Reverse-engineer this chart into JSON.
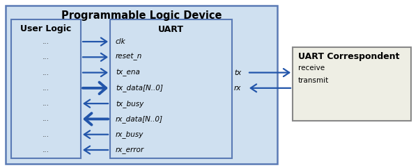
{
  "fig_w": 6.0,
  "fig_h": 2.42,
  "dpi": 100,
  "bg": "#ffffff",
  "pld_fill": "#cfe0f0",
  "pld_edge": "#5a7ab5",
  "ul_fill": "#cfe0f0",
  "ul_edge": "#5a7ab5",
  "uart_fill": "#cfe0f0",
  "uart_edge": "#5a7ab5",
  "corr_fill": "#eeeee4",
  "corr_edge": "#888888",
  "arrow_color": "#2255aa",
  "pld_title": "Programmable Logic Device",
  "ul_title": "User Logic",
  "uart_title": "UART",
  "corr_title": "UART Correspondent",
  "signals_in": [
    "clk",
    "reset_n",
    "tx_ena",
    "tx_data[N..0]"
  ],
  "signals_out": [
    "tx_busy",
    "rx_data[N..0]",
    "rx_busy",
    "rx_error"
  ],
  "corr_signals": [
    "receive",
    "transmit"
  ],
  "tx_label": "tx",
  "rx_label": "rx"
}
